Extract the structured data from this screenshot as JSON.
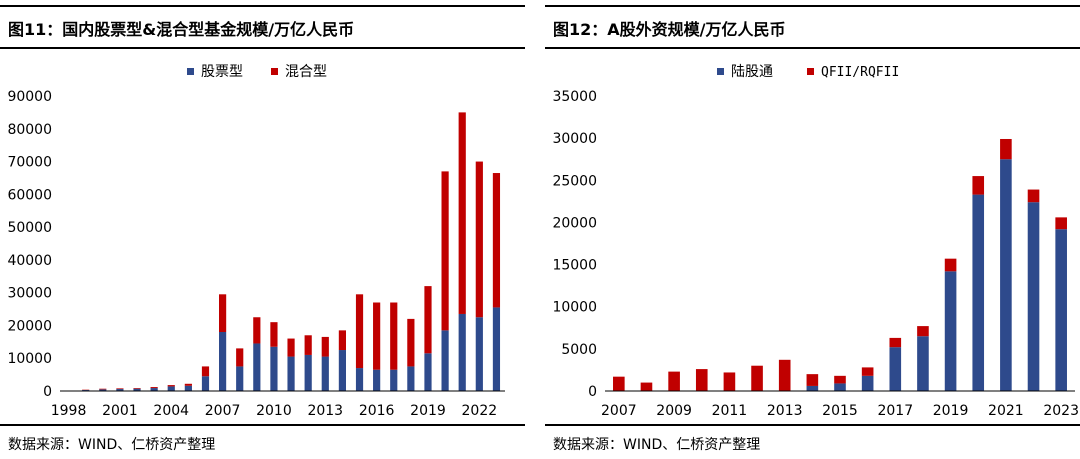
{
  "colors": {
    "blue": "#2e4a8c",
    "red": "#c00000",
    "axis": "#000000"
  },
  "chart_data": [
    {
      "type": "bar",
      "stacked": true,
      "title": "图11：国内股票型&混合型基金规模/万亿人民币",
      "source": "数据来源：WIND、仁桥资产整理",
      "categories": [
        "1998",
        "1999",
        "2000",
        "2001",
        "2002",
        "2003",
        "2004",
        "2005",
        "2006",
        "2007",
        "2008",
        "2009",
        "2010",
        "2011",
        "2012",
        "2013",
        "2014",
        "2015",
        "2016",
        "2017",
        "2018",
        "2019",
        "2020",
        "2021",
        "2022",
        "2023"
      ],
      "tick_labels": [
        "1998",
        "2001",
        "2004",
        "2007",
        "2010",
        "2013",
        "2016",
        "2019",
        "2022"
      ],
      "ylim": [
        0,
        90000
      ],
      "yticks": [
        0,
        10000,
        20000,
        30000,
        40000,
        50000,
        60000,
        70000,
        80000,
        90000
      ],
      "legend_position": "top-center",
      "series": [
        {
          "name": "股票型",
          "color": "#2e4a8c",
          "values": [
            100,
            300,
            500,
            600,
            700,
            900,
            1400,
            1600,
            4500,
            18000,
            7500,
            14500,
            13500,
            10500,
            11000,
            10500,
            12500,
            7000,
            6500,
            6500,
            7500,
            11500,
            18500,
            23500,
            22500,
            25500
          ]
        },
        {
          "name": "混合型",
          "color": "#c00000",
          "values": [
            0,
            100,
            200,
            200,
            200,
            300,
            400,
            600,
            3000,
            11500,
            5500,
            8000,
            7500,
            5500,
            6000,
            6000,
            6000,
            22500,
            20500,
            20500,
            14500,
            20500,
            48500,
            61500,
            47500,
            41000
          ]
        }
      ]
    },
    {
      "type": "bar",
      "stacked": true,
      "title": "图12：A股外资规模/万亿人民币",
      "source": "数据来源：WIND、仁桥资产整理",
      "categories": [
        "2007",
        "2008",
        "2009",
        "2010",
        "2011",
        "2012",
        "2013",
        "2014",
        "2015",
        "2016",
        "2017",
        "2018",
        "2019",
        "2020",
        "2021",
        "2022",
        "2023"
      ],
      "tick_labels": [
        "2007",
        "2009",
        "2011",
        "2013",
        "2015",
        "2017",
        "2019",
        "2021",
        "2023"
      ],
      "ylim": [
        0,
        35000
      ],
      "yticks": [
        0,
        5000,
        10000,
        15000,
        20000,
        25000,
        30000,
        35000
      ],
      "legend_position": "top-center",
      "series": [
        {
          "name": "陆股通",
          "color": "#2e4a8c",
          "values": [
            0,
            0,
            0,
            0,
            0,
            0,
            0,
            600,
            900,
            1800,
            5200,
            6500,
            14200,
            23300,
            27500,
            22400,
            19200
          ]
        },
        {
          "name": "QFII/RQFII",
          "color": "#c00000",
          "values": [
            1700,
            1000,
            2300,
            2600,
            2200,
            3000,
            3700,
            1400,
            900,
            1000,
            1100,
            1200,
            1500,
            2200,
            2400,
            1500,
            1400
          ]
        }
      ]
    }
  ]
}
